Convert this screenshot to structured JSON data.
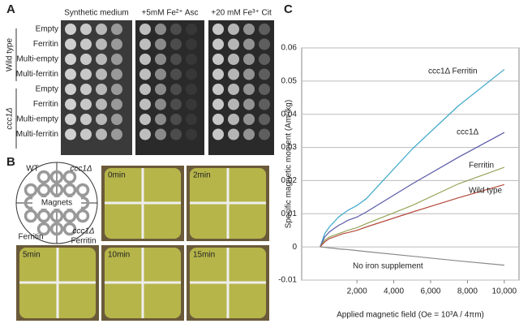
{
  "panel_a": {
    "label": "A",
    "columns": [
      "Synthetic medium",
      "+5mM Fe²⁺ Asc",
      "+20 mM Fe³⁺ Cit"
    ],
    "groups": [
      "Wild type",
      "ccc1Δ"
    ],
    "rows": [
      "Empty",
      "Ferritin",
      "Multi-empty",
      "Multi-ferritin",
      "Empty",
      "Ferritin",
      "Multi-empty",
      "Multi-ferritin"
    ]
  },
  "panel_b": {
    "label": "B",
    "diagram": {
      "top_left": "WT",
      "top_right": "ccc1Δ",
      "center": "Magnets",
      "bottom_left": "Ferritin",
      "bottom_right": [
        "ccc1Δ",
        "Ferritin"
      ]
    },
    "times": [
      "0min",
      "2min",
      "5min",
      "10min",
      "15min"
    ]
  },
  "chart_data": {
    "type": "line",
    "panel_label": "C",
    "x_label": "Applied magnetic field (Oe = 10³A / 4πm)",
    "y_label": "Specific magnetic moment (Am²/kg)",
    "x": [
      0,
      250,
      500,
      750,
      1000,
      1250,
      1500,
      2000,
      2500,
      5000,
      7500,
      10000
    ],
    "series": [
      {
        "name": "ccc1Δ Ferritin",
        "color": "#3aa6c8",
        "values": [
          0,
          0.004,
          0.006,
          0.0075,
          0.009,
          0.01,
          0.011,
          0.0125,
          0.0145,
          0.0295,
          0.0425,
          0.0535
        ]
      },
      {
        "name": "ccc1Δ",
        "color": "#5a5aa8",
        "values": [
          0,
          0.003,
          0.0045,
          0.0055,
          0.0065,
          0.0072,
          0.008,
          0.009,
          0.0105,
          0.019,
          0.027,
          0.0345
        ]
      },
      {
        "name": "Ferritin",
        "color": "#95a558",
        "values": [
          0,
          0.002,
          0.003,
          0.0035,
          0.004,
          0.0045,
          0.005,
          0.0058,
          0.007,
          0.0125,
          0.019,
          0.024
        ]
      },
      {
        "name": "Wild type",
        "color": "#b54a3c",
        "values": [
          0,
          0.0015,
          0.0025,
          0.003,
          0.0035,
          0.004,
          0.0043,
          0.005,
          0.006,
          0.0105,
          0.0148,
          0.0188
        ]
      },
      {
        "name": "No iron supplement",
        "color": "#8a8a8a",
        "values": [
          0,
          -0.0001,
          -0.0003,
          -0.0004,
          -0.0006,
          -0.0007,
          -0.0008,
          -0.0011,
          -0.0014,
          -0.0028,
          -0.0042,
          -0.0055
        ]
      }
    ],
    "xlim": [
      -1000,
      10800
    ],
    "ylim": [
      -0.01,
      0.06
    ],
    "xticks": [
      {
        "value": 2000,
        "label": "2,000"
      },
      {
        "value": 4000,
        "label": "4,000"
      },
      {
        "value": 6000,
        "label": "6,000"
      },
      {
        "value": 8000,
        "label": "8,000"
      },
      {
        "value": 10000,
        "label": "10,000"
      }
    ],
    "yticks": [
      -0.01,
      0,
      0.01,
      0.02,
      0.03,
      0.04,
      0.05,
      0.06
    ],
    "grid": true
  }
}
